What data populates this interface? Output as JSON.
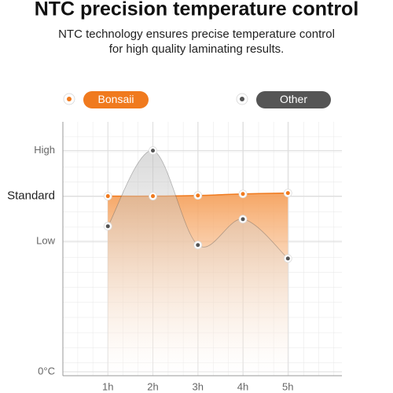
{
  "chart_data": {
    "type": "line",
    "title": "NTC precision temperature control",
    "subtitle": [
      "NTC technology ensures precise temperature control",
      "for high quality laminating results."
    ],
    "xlim": [
      0,
      6.2
    ],
    "xticks": [
      {
        "value": 1,
        "label": "1h"
      },
      {
        "value": 2,
        "label": "2h"
      },
      {
        "value": 3,
        "label": "3h"
      },
      {
        "value": 4,
        "label": "4h"
      },
      {
        "value": 5,
        "label": "5h"
      }
    ],
    "ylim": [
      0,
      113
    ],
    "yticks": [
      {
        "value": 0,
        "label": "0°C"
      },
      {
        "value": 59,
        "label": "Low"
      },
      {
        "value": 79.4,
        "label": "Standard"
      },
      {
        "value": 100,
        "label": "High"
      }
    ],
    "x": [
      1,
      2,
      3,
      4,
      5
    ],
    "series": [
      {
        "name": "Bonsaii",
        "color": "#f07a1e",
        "values": [
          79.4,
          79.4,
          79.7,
          80.4,
          80.8
        ]
      },
      {
        "name": "Other",
        "color": "#555555",
        "values": [
          65.8,
          100,
          57.3,
          69.0,
          51.2
        ]
      }
    ]
  }
}
